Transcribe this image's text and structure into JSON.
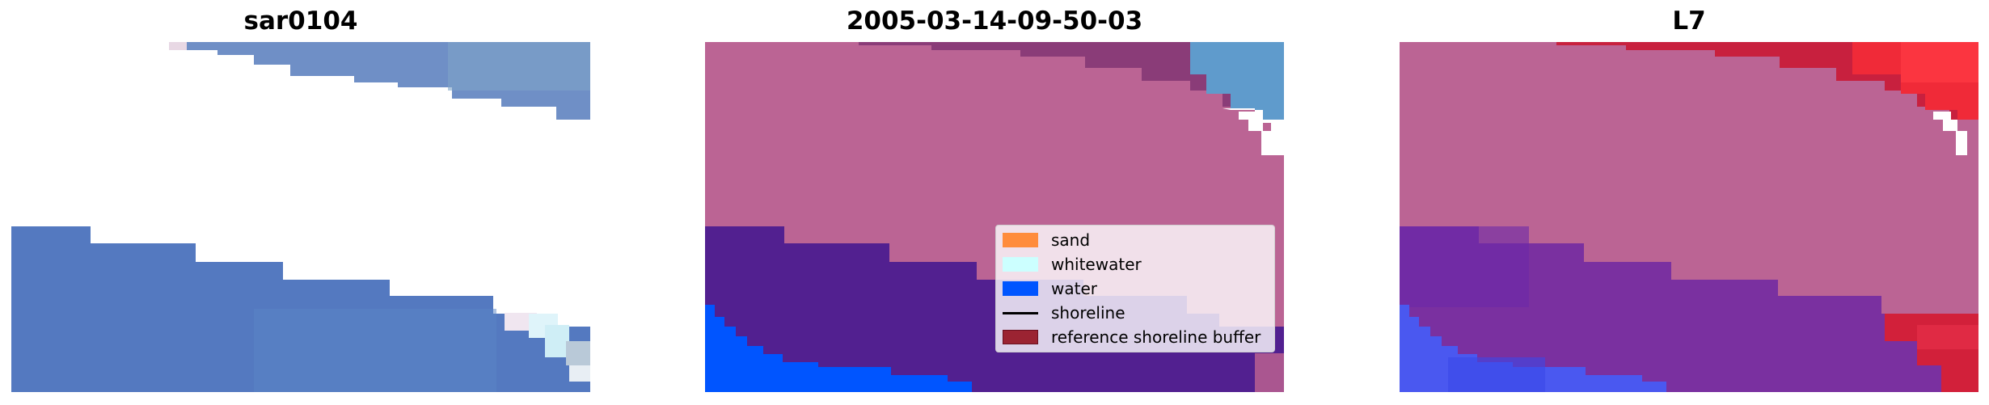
{
  "panels": [
    {
      "title": "sar0104"
    },
    {
      "title": "2005-03-14-09-50-03"
    },
    {
      "title": "L7"
    }
  ],
  "legend": {
    "items": [
      {
        "label": "sand",
        "color": "#ff8c3c",
        "kind": "patch"
      },
      {
        "label": "whitewater",
        "color": "#ccffff",
        "kind": "patch"
      },
      {
        "label": "water",
        "color": "#0055ff",
        "kind": "patch"
      },
      {
        "label": "shoreline",
        "color": "#000000",
        "kind": "line"
      },
      {
        "label": "reference shoreline buffer",
        "color": "#9b2332",
        "kind": "patch"
      }
    ]
  },
  "colors": {
    "buffer_pink": "#bb6494",
    "rgb_water": "#5b7fc0",
    "deep_purple": "#522090",
    "mixed_purple": "#7a30a0",
    "classified_water": "#0055ff",
    "red_rgb": "#d0203a"
  }
}
